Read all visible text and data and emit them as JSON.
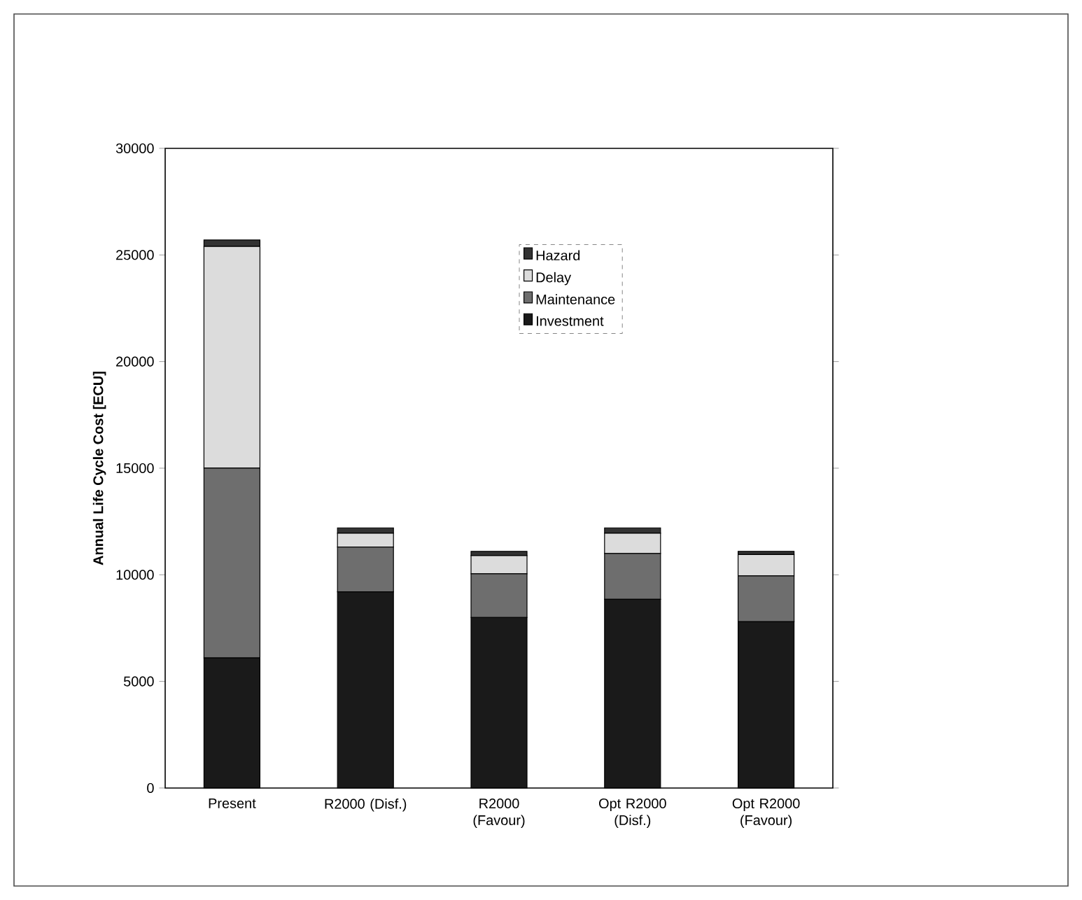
{
  "chart_data": {
    "type": "bar",
    "stacked": true,
    "ylabel": "Annual Life Cycle Cost [ECU]",
    "categories": [
      "Present",
      "R2000 (Disf.)",
      "R2000 (Favour)",
      "Opt R2000 (Disf.)",
      "Opt R2000 (Favour)"
    ],
    "series": [
      {
        "name": "Investment",
        "color": "#1a1a1a",
        "values": [
          6100,
          9200,
          8000,
          8850,
          7800
        ]
      },
      {
        "name": "Maintenance",
        "color": "#6e6e6e",
        "values": [
          8900,
          2100,
          2050,
          2150,
          2150
        ]
      },
      {
        "name": "Delay",
        "color": "#dcdcdc",
        "values": [
          10400,
          650,
          850,
          950,
          1000
        ]
      },
      {
        "name": "Hazard",
        "color": "#333333",
        "values": [
          300,
          250,
          200,
          250,
          150
        ]
      }
    ],
    "ylim": [
      0,
      30000
    ],
    "yticks": [
      0,
      5000,
      10000,
      15000,
      20000,
      25000,
      30000
    ],
    "grid": false,
    "legend": "top right"
  }
}
